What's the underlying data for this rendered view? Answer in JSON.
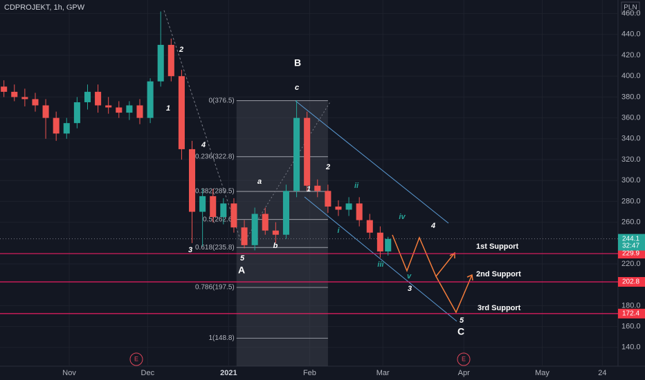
{
  "chart_data": {
    "type": "candlestick",
    "title": "CDPROJEKT, 1h, GPW",
    "currency": "PLN",
    "x": [
      -25,
      -21,
      -17,
      -13,
      -9,
      -5,
      -1,
      3,
      7,
      11,
      15,
      19,
      23,
      27,
      31,
      35,
      39,
      43,
      47,
      51,
      55,
      59,
      63,
      67,
      71,
      75,
      79,
      83,
      87,
      91,
      95,
      99,
      103,
      107,
      111,
      115,
      119,
      122
    ],
    "open": [
      390,
      385,
      380,
      378,
      372,
      360,
      345,
      355,
      375,
      385,
      372,
      370,
      365,
      372,
      360,
      395,
      430,
      400,
      330,
      270,
      285,
      265,
      278,
      255,
      238,
      268,
      252,
      248,
      290,
      360,
      295,
      290,
      275,
      272,
      278,
      262,
      250,
      232
    ],
    "high": [
      396,
      392,
      388,
      384,
      378,
      366,
      360,
      380,
      392,
      392,
      380,
      376,
      376,
      378,
      398,
      462,
      436,
      406,
      338,
      292,
      292,
      283,
      283,
      262,
      274,
      274,
      260,
      296,
      377,
      366,
      301,
      296,
      281,
      284,
      284,
      268,
      256,
      246
    ],
    "low": [
      380,
      376,
      371,
      366,
      340,
      338,
      340,
      350,
      368,
      365,
      364,
      360,
      358,
      354,
      355,
      390,
      395,
      320,
      240,
      237,
      260,
      258,
      250,
      235,
      233,
      248,
      240,
      244,
      284,
      290,
      284,
      269,
      266,
      266,
      256,
      244,
      226,
      228
    ],
    "close": [
      385,
      380,
      378,
      372,
      360,
      345,
      355,
      375,
      385,
      372,
      370,
      365,
      372,
      360,
      395,
      430,
      400,
      330,
      270,
      285,
      265,
      278,
      255,
      238,
      268,
      252,
      248,
      290,
      360,
      295,
      290,
      275,
      272,
      278,
      262,
      250,
      232,
      244
    ],
    "up_color": "#26a69a",
    "down_color": "#ef5350",
    "xlim": [
      -26.5,
      210
    ],
    "xticks": [
      {
        "value": 0,
        "label": "Nov"
      },
      {
        "value": 30,
        "label": "Dec"
      },
      {
        "value": 61,
        "label": "2021"
      },
      {
        "value": 92,
        "label": "Feb"
      },
      {
        "value": 120,
        "label": "Mar"
      },
      {
        "value": 151,
        "label": "Apr"
      },
      {
        "value": 181,
        "label": "May"
      },
      {
        "value": 204,
        "label": "24"
      }
    ],
    "ylim": [
      122,
      473
    ],
    "yticks": [
      {
        "value": 140,
        "label": "140.0"
      },
      {
        "value": 160,
        "label": "160.0"
      },
      {
        "value": 180,
        "label": "180.0"
      },
      {
        "value": 220,
        "label": "220.0"
      },
      {
        "value": 260,
        "label": "260.0"
      },
      {
        "value": 280,
        "label": "280.0"
      },
      {
        "value": 300,
        "label": "300.0"
      },
      {
        "value": 320,
        "label": "320.0"
      },
      {
        "value": 340,
        "label": "340.0"
      },
      {
        "value": 360,
        "label": "360.0"
      },
      {
        "value": 380,
        "label": "380.0"
      },
      {
        "value": 400,
        "label": "400.0"
      },
      {
        "value": 420,
        "label": "420.0"
      },
      {
        "value": 440,
        "label": "440.0"
      },
      {
        "value": 460,
        "label": "460.0"
      }
    ],
    "last_price": {
      "value": 244.1,
      "label": "244.1",
      "countdown": "32:47"
    },
    "supports": [
      {
        "name": "1st Support",
        "value": 229.9,
        "label": "229.9"
      },
      {
        "name": "2nd Support",
        "value": 202.8,
        "label": "202.8"
      },
      {
        "name": "3rd Support",
        "value": 172.4,
        "label": "172.4"
      }
    ],
    "fib": {
      "x_start": 64,
      "x_end": 99,
      "levels": [
        {
          "value": 376.5,
          "label": "0(376.5)"
        },
        {
          "value": 322.8,
          "label": "0.236(322.8)"
        },
        {
          "value": 289.5,
          "label": "0.382(289.5)"
        },
        {
          "value": 262.6,
          "label": "0.5(262.6)"
        },
        {
          "value": 235.8,
          "label": "0.618(235.8)"
        },
        {
          "value": 197.5,
          "label": "0.786(197.5)"
        },
        {
          "value": 148.8,
          "label": "1(148.8)"
        }
      ]
    },
    "annotations": [
      "2",
      "1",
      "4",
      "3",
      "5",
      "A",
      "B",
      "c",
      "a",
      "b",
      "1",
      "2",
      "ii",
      "i",
      "iv",
      "4",
      "iii",
      "v",
      "3",
      "5",
      "C"
    ],
    "earnings_markers": [
      "E",
      "E"
    ]
  }
}
